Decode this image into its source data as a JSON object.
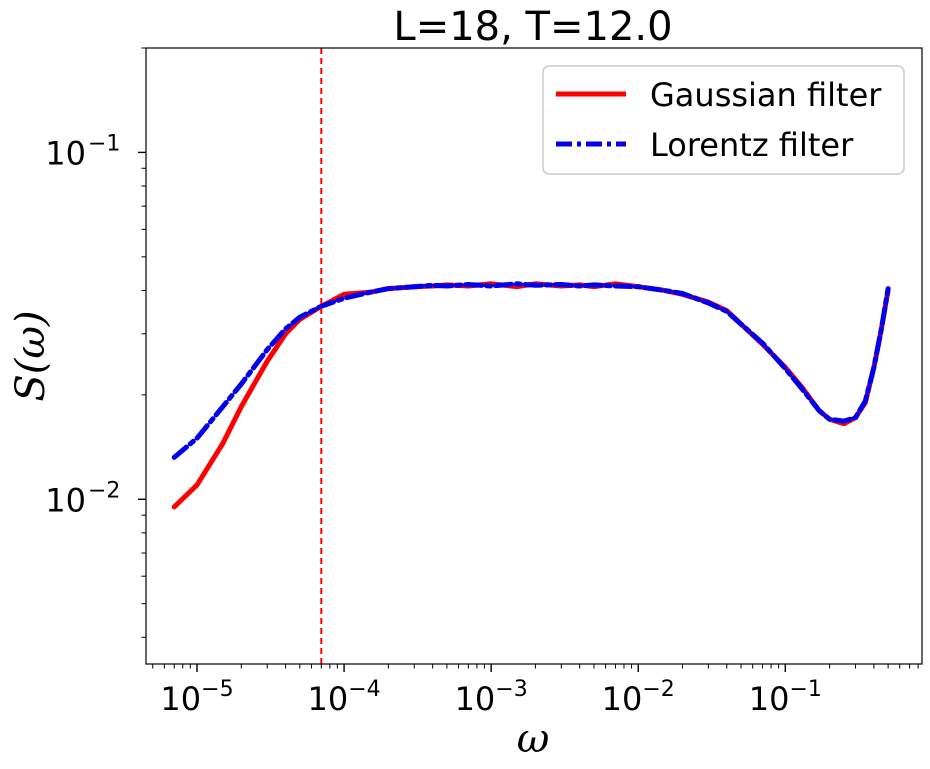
{
  "chart_data": {
    "type": "line",
    "title": "L=18, T=12.0",
    "xlabel": "ω",
    "ylabel": "S(ω)",
    "xscale": "log",
    "yscale": "log",
    "xlim": [
      4.5e-06,
      0.85
    ],
    "ylim": [
      0.00335,
      0.2
    ],
    "xticks": [
      {
        "value": 1e-05,
        "base": "10",
        "exp": "−5"
      },
      {
        "value": 0.0001,
        "base": "10",
        "exp": "−4"
      },
      {
        "value": 0.001,
        "base": "10",
        "exp": "−3"
      },
      {
        "value": 0.01,
        "base": "10",
        "exp": "−2"
      },
      {
        "value": 0.1,
        "base": "10",
        "exp": "−1"
      }
    ],
    "yticks": [
      {
        "value": 0.01,
        "base": "10",
        "exp": "−2"
      },
      {
        "value": 0.1,
        "base": "10",
        "exp": "−1"
      }
    ],
    "vline": {
      "x": 7e-05,
      "color": "#ff0000",
      "style": "dashed"
    },
    "legend": {
      "placement": "upper-right"
    },
    "series": [
      {
        "name": "Gaussian filter",
        "color": "#ff0000",
        "style": "solid",
        "x": [
          7e-06,
          1e-05,
          1.5e-05,
          2e-05,
          3e-05,
          4e-05,
          5e-05,
          7e-05,
          0.0001,
          0.00015,
          0.0002,
          0.0003,
          0.0004,
          0.0005,
          0.0007,
          0.001,
          0.0015,
          0.002,
          0.003,
          0.004,
          0.005,
          0.007,
          0.01,
          0.015,
          0.02,
          0.03,
          0.04,
          0.05,
          0.07,
          0.1,
          0.13,
          0.17,
          0.2,
          0.25,
          0.3,
          0.35,
          0.4,
          0.45,
          0.5
        ],
        "y": [
          0.0095,
          0.011,
          0.0145,
          0.0185,
          0.025,
          0.03,
          0.033,
          0.036,
          0.039,
          0.0395,
          0.0405,
          0.041,
          0.0412,
          0.0415,
          0.0412,
          0.0418,
          0.041,
          0.0418,
          0.0412,
          0.0415,
          0.041,
          0.0418,
          0.041,
          0.04,
          0.039,
          0.037,
          0.035,
          0.032,
          0.028,
          0.024,
          0.021,
          0.018,
          0.017,
          0.0165,
          0.0172,
          0.019,
          0.024,
          0.031,
          0.04
        ]
      },
      {
        "name": "Lorentz filter",
        "color": "#0000ee",
        "style": "dashdot",
        "x": [
          7e-06,
          1e-05,
          1.5e-05,
          2e-05,
          3e-05,
          4e-05,
          5e-05,
          7e-05,
          0.0001,
          0.00015,
          0.0002,
          0.0003,
          0.0004,
          0.0005,
          0.0007,
          0.001,
          0.0015,
          0.002,
          0.003,
          0.004,
          0.005,
          0.007,
          0.01,
          0.015,
          0.02,
          0.03,
          0.04,
          0.05,
          0.07,
          0.1,
          0.13,
          0.17,
          0.2,
          0.25,
          0.3,
          0.35,
          0.4,
          0.45,
          0.5
        ],
        "y": [
          0.0132,
          0.015,
          0.0185,
          0.0215,
          0.027,
          0.031,
          0.0335,
          0.036,
          0.038,
          0.0395,
          0.0405,
          0.041,
          0.0414,
          0.0412,
          0.0416,
          0.0412,
          0.0418,
          0.0414,
          0.0416,
          0.0412,
          0.0415,
          0.0412,
          0.041,
          0.04,
          0.0392,
          0.0368,
          0.0348,
          0.032,
          0.0282,
          0.0238,
          0.0208,
          0.018,
          0.017,
          0.0168,
          0.0172,
          0.0192,
          0.024,
          0.031,
          0.0405
        ]
      }
    ]
  }
}
